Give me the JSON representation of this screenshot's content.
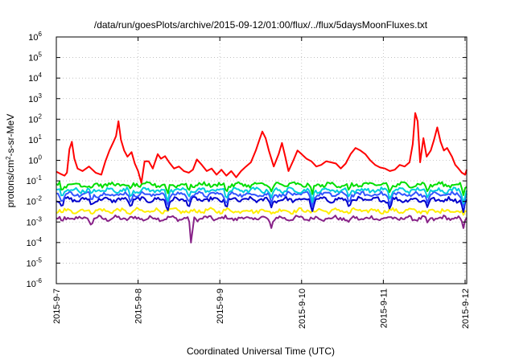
{
  "chart_data": {
    "type": "line",
    "title": "/data/run/goesPlots/archive/2015-09-12/01:00/flux/../flux/5daysMoonFluxes.txt",
    "xlabel": "Coordinated Universal Time (UTC)",
    "ylabel": {
      "prefix": "protons/cm",
      "sup": "2",
      "suffix": "-s-sr-MeV"
    },
    "x_unit": "days since 2015-09-07 00:00 UTC",
    "xlim": [
      0,
      5.02
    ],
    "x_ticks": [
      {
        "x": 0,
        "label": "2015-9-7"
      },
      {
        "x": 1,
        "label": "2015-9-8"
      },
      {
        "x": 2,
        "label": "2015-9-9"
      },
      {
        "x": 3,
        "label": "2015-9-10"
      },
      {
        "x": 4,
        "label": "2015-9-11"
      },
      {
        "x": 5,
        "label": "2015-9-12"
      }
    ],
    "y_scale": "log",
    "ylim_exp": [
      -6,
      6
    ],
    "y_ticks": [
      {
        "exp": -6,
        "base": "10",
        "sup": "-6"
      },
      {
        "exp": -5,
        "base": "10",
        "sup": "-5"
      },
      {
        "exp": -4,
        "base": "10",
        "sup": "-4"
      },
      {
        "exp": -3,
        "base": "10",
        "sup": "-3"
      },
      {
        "exp": -2,
        "base": "10",
        "sup": "-2"
      },
      {
        "exp": -1,
        "base": "10",
        "sup": "-1"
      },
      {
        "exp": 0,
        "base": "10",
        "sup": "0"
      },
      {
        "exp": 1,
        "base": "10",
        "sup": "1"
      },
      {
        "exp": 2,
        "base": "10",
        "sup": "2"
      },
      {
        "exp": 3,
        "base": "10",
        "sup": "3"
      },
      {
        "exp": 4,
        "base": "10",
        "sup": "4"
      },
      {
        "exp": 5,
        "base": "10",
        "sup": "5"
      },
      {
        "exp": 6,
        "base": "10",
        "sup": "6"
      }
    ],
    "grid": "dotted",
    "legend": "none",
    "series": [
      {
        "color": "#ff0000",
        "description": "highest-flux channel",
        "points": [
          [
            0,
            0.28
          ],
          [
            0.05,
            0.22
          ],
          [
            0.1,
            0.18
          ],
          [
            0.13,
            0.25
          ],
          [
            0.16,
            3.5
          ],
          [
            0.19,
            8
          ],
          [
            0.22,
            1.2
          ],
          [
            0.26,
            0.4
          ],
          [
            0.32,
            0.3
          ],
          [
            0.4,
            0.5
          ],
          [
            0.48,
            0.25
          ],
          [
            0.55,
            0.2
          ],
          [
            0.6,
            0.9
          ],
          [
            0.65,
            3
          ],
          [
            0.7,
            8
          ],
          [
            0.73,
            15
          ],
          [
            0.76,
            80
          ],
          [
            0.79,
            10
          ],
          [
            0.83,
            3
          ],
          [
            0.87,
            1.5
          ],
          [
            0.92,
            2.5
          ],
          [
            0.96,
            0.7
          ],
          [
            1.0,
            0.3
          ],
          [
            1.04,
            0.08
          ],
          [
            1.08,
            0.9
          ],
          [
            1.13,
            0.9
          ],
          [
            1.18,
            0.4
          ],
          [
            1.24,
            2
          ],
          [
            1.28,
            1.2
          ],
          [
            1.33,
            1.6
          ],
          [
            1.38,
            0.8
          ],
          [
            1.44,
            0.4
          ],
          [
            1.5,
            0.5
          ],
          [
            1.56,
            0.3
          ],
          [
            1.62,
            0.25
          ],
          [
            1.67,
            0.35
          ],
          [
            1.72,
            1.1
          ],
          [
            1.78,
            0.6
          ],
          [
            1.84,
            0.3
          ],
          [
            1.9,
            0.4
          ],
          [
            1.96,
            0.2
          ],
          [
            2.02,
            0.35
          ],
          [
            2.08,
            0.18
          ],
          [
            2.14,
            0.3
          ],
          [
            2.2,
            0.15
          ],
          [
            2.26,
            0.3
          ],
          [
            2.32,
            0.5
          ],
          [
            2.38,
            0.8
          ],
          [
            2.44,
            3
          ],
          [
            2.48,
            9
          ],
          [
            2.52,
            25
          ],
          [
            2.56,
            12
          ],
          [
            2.6,
            3
          ],
          [
            2.66,
            0.5
          ],
          [
            2.72,
            2
          ],
          [
            2.76,
            7
          ],
          [
            2.8,
            1.5
          ],
          [
            2.84,
            0.3
          ],
          [
            2.9,
            1
          ],
          [
            2.95,
            3
          ],
          [
            3.0,
            2
          ],
          [
            3.06,
            1.2
          ],
          [
            3.12,
            0.9
          ],
          [
            3.18,
            0.5
          ],
          [
            3.24,
            0.6
          ],
          [
            3.3,
            0.9
          ],
          [
            3.36,
            0.8
          ],
          [
            3.42,
            0.7
          ],
          [
            3.48,
            0.4
          ],
          [
            3.54,
            0.7
          ],
          [
            3.6,
            2
          ],
          [
            3.66,
            4
          ],
          [
            3.72,
            3
          ],
          [
            3.78,
            2
          ],
          [
            3.84,
            1
          ],
          [
            3.9,
            0.6
          ],
          [
            3.96,
            0.45
          ],
          [
            4.02,
            0.4
          ],
          [
            4.08,
            0.3
          ],
          [
            4.14,
            0.35
          ],
          [
            4.2,
            0.6
          ],
          [
            4.26,
            0.5
          ],
          [
            4.32,
            0.8
          ],
          [
            4.36,
            6
          ],
          [
            4.39,
            200
          ],
          [
            4.42,
            80
          ],
          [
            4.45,
            0.8
          ],
          [
            4.49,
            12
          ],
          [
            4.53,
            1.5
          ],
          [
            4.58,
            3
          ],
          [
            4.62,
            10
          ],
          [
            4.66,
            40
          ],
          [
            4.7,
            8
          ],
          [
            4.74,
            3
          ],
          [
            4.78,
            4
          ],
          [
            4.84,
            1.5
          ],
          [
            4.88,
            0.6
          ],
          [
            4.92,
            0.4
          ],
          [
            4.96,
            0.25
          ],
          [
            5.0,
            0.2
          ],
          [
            5.02,
            0.35
          ]
        ]
      },
      {
        "color": "#00dd00",
        "description": "upper middle channel",
        "baseline": 0.065,
        "dips": [
          [
            0.07,
            0.03
          ],
          [
            0.43,
            0.04
          ],
          [
            0.91,
            0.035
          ],
          [
            1.36,
            0.02
          ],
          [
            1.62,
            0.03
          ],
          [
            2.08,
            0.025
          ],
          [
            2.63,
            0.03
          ],
          [
            3.13,
            0.02
          ],
          [
            3.58,
            0.03
          ],
          [
            4.08,
            0.025
          ],
          [
            4.54,
            0.03
          ],
          [
            4.98,
            0.02
          ]
        ]
      },
      {
        "color": "#00ccdd",
        "description": "middle channel",
        "baseline": 0.035,
        "dips": [
          [
            0.07,
            0.015
          ],
          [
            0.43,
            0.02
          ],
          [
            0.91,
            0.015
          ],
          [
            1.36,
            0.008
          ],
          [
            1.62,
            0.015
          ],
          [
            2.08,
            0.012
          ],
          [
            2.63,
            0.015
          ],
          [
            3.13,
            0.008
          ],
          [
            3.58,
            0.015
          ],
          [
            4.08,
            0.012
          ],
          [
            4.54,
            0.015
          ],
          [
            4.98,
            0.008
          ]
        ]
      },
      {
        "color": "#3355ff",
        "description": "middle channel",
        "baseline": 0.022,
        "dips": [
          [
            0.07,
            0.008
          ],
          [
            0.43,
            0.01
          ],
          [
            0.91,
            0.008
          ],
          [
            1.36,
            0.005
          ],
          [
            1.62,
            0.008
          ],
          [
            2.08,
            0.006
          ],
          [
            2.63,
            0.008
          ],
          [
            3.13,
            0.005
          ],
          [
            3.58,
            0.008
          ],
          [
            4.08,
            0.006
          ],
          [
            4.54,
            0.008
          ],
          [
            4.98,
            0.005
          ]
        ]
      },
      {
        "color": "#0000cc",
        "description": "lower middle channel",
        "baseline": 0.012,
        "dips": [
          [
            0.07,
            0.005
          ],
          [
            0.43,
            0.006
          ],
          [
            0.91,
            0.005
          ],
          [
            1.36,
            0.003
          ],
          [
            1.62,
            0.005
          ],
          [
            2.08,
            0.004
          ],
          [
            2.63,
            0.005
          ],
          [
            3.13,
            0.003
          ],
          [
            3.58,
            0.005
          ],
          [
            4.08,
            0.004
          ],
          [
            4.54,
            0.005
          ],
          [
            4.98,
            0.003
          ]
        ]
      },
      {
        "color": "#ffee00",
        "description": "low channel",
        "baseline": 0.0035,
        "dips": [
          [
            0.07,
            0.0025
          ],
          [
            0.91,
            0.0022
          ],
          [
            1.62,
            0.0025
          ],
          [
            2.63,
            0.0025
          ],
          [
            3.58,
            0.0025
          ],
          [
            4.54,
            0.0025
          ],
          [
            4.98,
            0.0022
          ]
        ]
      },
      {
        "color": "#882288",
        "description": "lowest channel",
        "baseline": 0.0015,
        "dips": [
          [
            0.07,
            0.0009
          ],
          [
            0.43,
            0.0006
          ],
          [
            1.65,
            7e-05
          ],
          [
            2.63,
            0.0005
          ],
          [
            3.58,
            0.0009
          ],
          [
            4.54,
            0.0009
          ],
          [
            4.98,
            0.0005
          ]
        ]
      }
    ]
  }
}
